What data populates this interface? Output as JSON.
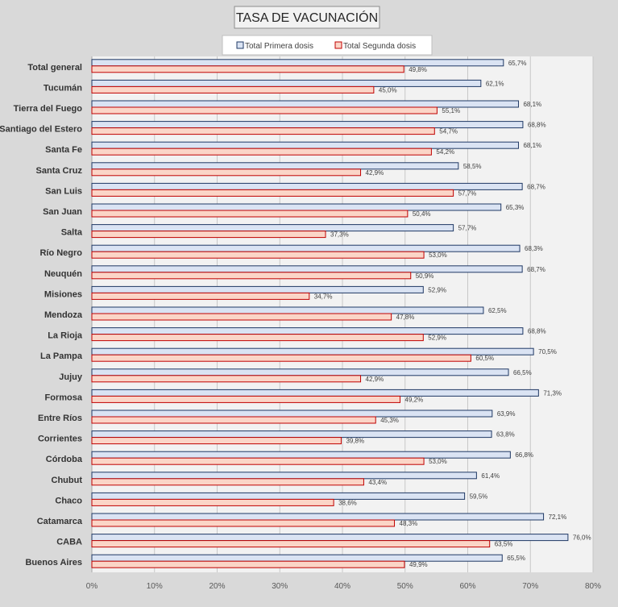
{
  "chart_data": {
    "type": "bar",
    "orientation": "horizontal",
    "title": "TASA DE VACUNACIÓN",
    "categories": [
      "Total general",
      "Tucumán",
      "Tierra del Fuego",
      "Santiago del Estero",
      "Santa Fe",
      "Santa Cruz",
      "San Luis",
      "San Juan",
      "Salta",
      "Río Negro",
      "Neuquén",
      "Misiones",
      "Mendoza",
      "La Rioja",
      "La Pampa",
      "Jujuy",
      "Formosa",
      "Entre Ríos",
      "Corrientes",
      "Córdoba",
      "Chubut",
      "Chaco",
      "Catamarca",
      "CABA",
      "Buenos Aires"
    ],
    "series": [
      {
        "name": "Total Primera dosis",
        "color": "#dae3f3",
        "border": "#1f3864",
        "values": [
          65.7,
          62.1,
          68.1,
          68.8,
          68.1,
          58.5,
          68.7,
          65.3,
          57.7,
          68.3,
          68.7,
          52.9,
          62.5,
          68.8,
          70.5,
          66.5,
          71.3,
          63.9,
          63.8,
          66.8,
          61.4,
          59.5,
          72.1,
          76.0,
          65.5
        ],
        "labels": [
          "65,7%",
          "62,1%",
          "68,1%",
          "68,8%",
          "68,1%",
          "58,5%",
          "68,7%",
          "65,3%",
          "57,7%",
          "68,3%",
          "68,7%",
          "52,9%",
          "62,5%",
          "68,8%",
          "70,5%",
          "66,5%",
          "71,3%",
          "63,9%",
          "63,8%",
          "66,8%",
          "61,4%",
          "59,5%",
          "72,1%",
          "76,0%",
          "65,5%"
        ]
      },
      {
        "name": "Total Segunda dosis",
        "color": "#fbd5c7",
        "border": "#c00000",
        "values": [
          49.8,
          45.0,
          55.1,
          54.7,
          54.2,
          42.9,
          57.7,
          50.4,
          37.3,
          53.0,
          50.9,
          34.7,
          47.8,
          52.9,
          60.5,
          42.9,
          49.2,
          45.3,
          39.8,
          53.0,
          43.4,
          38.6,
          48.3,
          63.5,
          49.9
        ],
        "labels": [
          "49,8%",
          "45,0%",
          "55,1%",
          "54,7%",
          "54,2%",
          "42,9%",
          "57,7%",
          "50,4%",
          "37,3%",
          "53,0%",
          "50,9%",
          "34,7%",
          "47,8%",
          "52,9%",
          "60,5%",
          "42,9%",
          "49,2%",
          "45,3%",
          "39,8%",
          "53,0%",
          "43,4%",
          "38,6%",
          "48,3%",
          "63,5%",
          "49,9%"
        ]
      }
    ],
    "xlim": [
      0,
      80
    ],
    "x_ticks": [
      "0%",
      "10%",
      "20%",
      "30%",
      "40%",
      "50%",
      "60%",
      "70%",
      "80%"
    ],
    "grid": true,
    "legend_position": "top"
  }
}
